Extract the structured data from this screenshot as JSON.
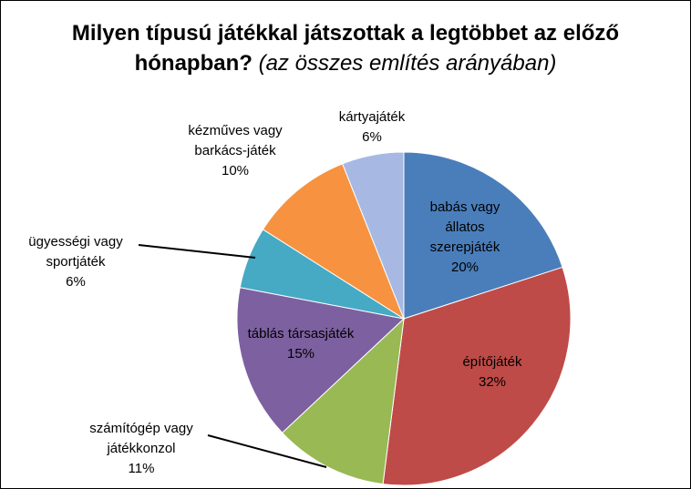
{
  "chart_data": {
    "type": "pie",
    "title_line1": "Milyen típusú játékkal játszottak a legtöbbet az előző",
    "title_line2_bold": "hónapban?",
    "title_line2_italic": "(az összes említés arányában)",
    "slices": [
      {
        "label_lines": [
          "babás vagy",
          "állatos",
          "szerepjáték"
        ],
        "pct_label": "20%",
        "value": 20,
        "color": "#4a7ebb"
      },
      {
        "label_lines": [
          "építőjáték"
        ],
        "pct_label": "32%",
        "value": 32,
        "color": "#be4b48"
      },
      {
        "label_lines": [
          "számítógép vagy",
          "játékkonzol"
        ],
        "pct_label": "11%",
        "value": 11,
        "color": "#98b954"
      },
      {
        "label_lines": [
          "táblás társasjáték"
        ],
        "pct_label": "15%",
        "value": 15,
        "color": "#7d60a0"
      },
      {
        "label_lines": [
          "ügyességi vagy",
          "sportjáték"
        ],
        "pct_label": "6%",
        "value": 6,
        "color": "#46aac5"
      },
      {
        "label_lines": [
          "kézműves vagy",
          "barkács-játék"
        ],
        "pct_label": "10%",
        "value": 10,
        "color": "#f69240"
      },
      {
        "label_lines": [
          "kártyajáték"
        ],
        "pct_label": "6%",
        "value": 6,
        "color": "#a7b9e3"
      }
    ]
  }
}
